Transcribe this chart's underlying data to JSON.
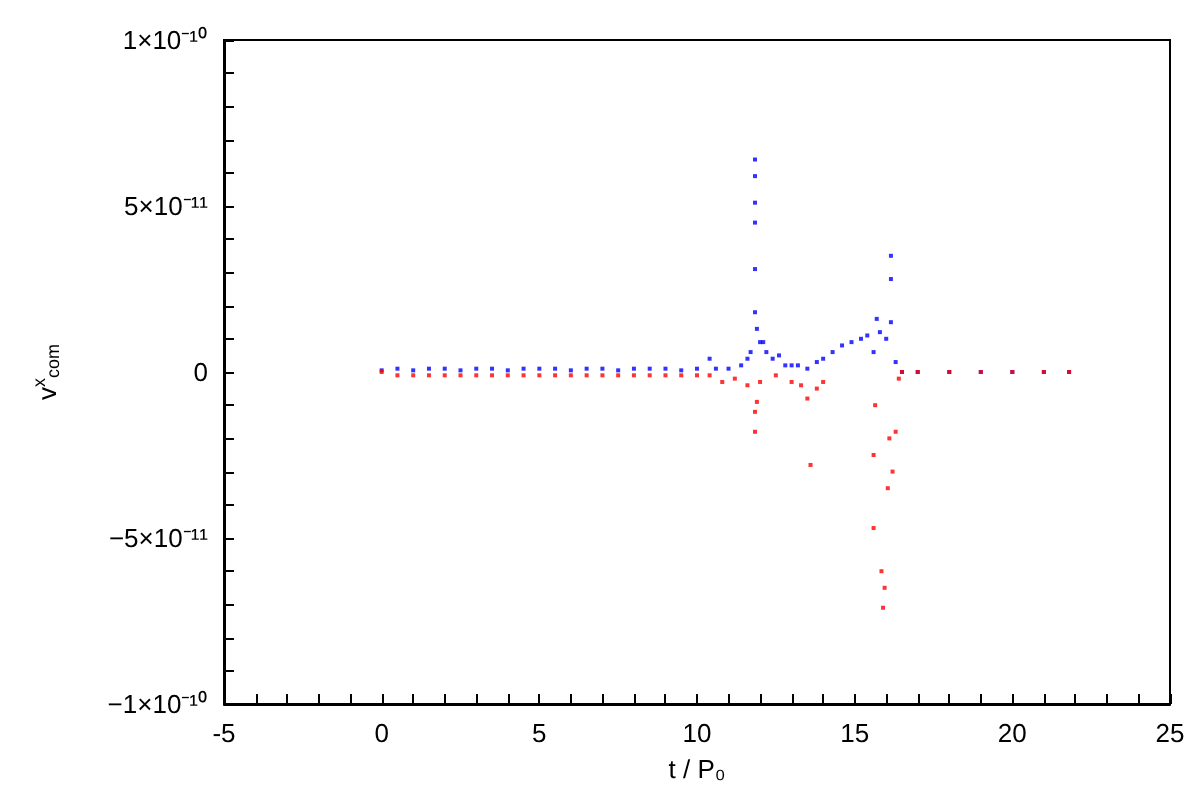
{
  "chart_data": {
    "type": "scatter",
    "xlabel": "t / P₀",
    "ylabel": "v$^{x}$$_{com}$",
    "marker": "square",
    "xlim": [
      -5,
      25
    ],
    "ylim": [
      -1e-10,
      1e-10
    ],
    "xticks": [
      -5,
      {
        "value": -4,
        "label": null
      },
      {
        "value": -3,
        "label": null
      },
      {
        "value": -2,
        "label": null
      },
      {
        "value": -1,
        "label": null
      },
      0,
      {
        "value": 1,
        "label": null
      },
      {
        "value": 2,
        "label": null
      },
      {
        "value": 3,
        "label": null
      },
      {
        "value": 4,
        "label": null
      },
      5,
      {
        "value": 6,
        "label": null
      },
      {
        "value": 7,
        "label": null
      },
      {
        "value": 8,
        "label": null
      },
      {
        "value": 9,
        "label": null
      },
      10,
      {
        "value": 11,
        "label": null
      },
      {
        "value": 12,
        "label": null
      },
      {
        "value": 13,
        "label": null
      },
      {
        "value": 14,
        "label": null
      },
      15,
      {
        "value": 16,
        "label": null
      },
      {
        "value": 17,
        "label": null
      },
      {
        "value": 18,
        "label": null
      },
      {
        "value": 19,
        "label": null
      },
      20,
      {
        "value": 21,
        "label": null
      },
      {
        "value": 22,
        "label": null
      },
      {
        "value": 23,
        "label": null
      },
      {
        "value": 24,
        "label": null
      },
      25
    ],
    "yticks": [
      {
        "value": -1e-10,
        "label": "−1×10⁻¹⁰"
      },
      {
        "value": -9e-11,
        "label": null
      },
      {
        "value": -8e-11,
        "label": null
      },
      {
        "value": -7e-11,
        "label": null
      },
      {
        "value": -6e-11,
        "label": null
      },
      {
        "value": -5e-11,
        "label": "−5×10⁻¹¹"
      },
      {
        "value": -4e-11,
        "label": null
      },
      {
        "value": -3e-11,
        "label": null
      },
      {
        "value": -2e-11,
        "label": null
      },
      {
        "value": -1e-11,
        "label": null
      },
      0,
      {
        "value": 1e-11,
        "label": null
      },
      {
        "value": 2e-11,
        "label": null
      },
      {
        "value": 3e-11,
        "label": null
      },
      {
        "value": 4e-11,
        "label": null
      },
      {
        "value": 5e-11,
        "label": "5×10⁻¹¹"
      },
      {
        "value": 6e-11,
        "label": null
      },
      {
        "value": 7e-11,
        "label": null
      },
      {
        "value": 8e-11,
        "label": null
      },
      {
        "value": 9e-11,
        "label": null
      },
      {
        "value": 1e-10,
        "label": "1×10⁻¹⁰"
      }
    ],
    "series": [
      {
        "color": "#0000ff",
        "x": [
          0,
          0.5,
          1,
          1.5,
          2,
          2.5,
          3,
          3.5,
          4,
          4.5,
          5,
          5.5,
          6,
          6.5,
          7,
          7.5,
          8,
          8.5,
          9,
          9.5,
          10,
          10.4,
          10.6,
          11,
          11.4,
          11.6,
          11.84,
          11.84,
          11.84,
          11.84,
          11.84,
          11.84,
          11.7,
          11.9,
          12,
          12.1,
          12.2,
          12.4,
          12.6,
          12.8,
          13,
          13.2,
          13.5,
          13.8,
          14,
          14.3,
          14.6,
          14.9,
          15.2,
          15.4,
          15.6,
          15.7,
          15.8,
          16,
          16.15,
          16.15,
          16.15,
          16.3,
          16.5,
          17,
          18,
          19,
          20,
          21,
          21.8
        ],
        "values": [
          5e-13,
          1e-12,
          5e-13,
          1e-12,
          1e-12,
          5e-13,
          1e-12,
          1e-12,
          5e-13,
          1e-12,
          1e-12,
          1e-12,
          5e-13,
          1e-12,
          1e-12,
          5e-13,
          1e-12,
          1e-12,
          1e-12,
          5e-13,
          1e-12,
          4e-12,
          1e-12,
          1e-12,
          2e-12,
          4e-12,
          6.4e-11,
          5.9e-11,
          5.1e-11,
          4.5e-11,
          3.1e-11,
          1.8e-11,
          6e-12,
          1.3e-11,
          9e-12,
          9e-12,
          6e-12,
          4e-12,
          5e-12,
          2e-12,
          2e-12,
          2e-12,
          1e-12,
          3e-12,
          4e-12,
          6e-12,
          8e-12,
          9e-12,
          1e-11,
          1.1e-11,
          6e-12,
          1.6e-11,
          1.2e-11,
          1e-11,
          3.5e-11,
          2.8e-11,
          1.5e-11,
          3e-12,
          0,
          0,
          0,
          0,
          0,
          0,
          0
        ]
      },
      {
        "color": "#ff0000",
        "x": [
          0,
          0.5,
          1,
          1.5,
          2,
          2.5,
          3,
          3.5,
          4,
          4.5,
          5,
          5.5,
          6,
          6.5,
          7,
          7.5,
          8,
          8.5,
          9,
          9.5,
          10,
          10.4,
          10.8,
          11.2,
          11.6,
          11.84,
          11.84,
          11.9,
          12,
          12.5,
          13,
          13.3,
          13.5,
          13.6,
          13.8,
          14,
          15.6,
          15.6,
          15.65,
          15.85,
          15.9,
          15.95,
          16.05,
          16.1,
          16.2,
          16.3,
          16.4,
          16.5,
          17,
          18,
          19,
          20,
          21,
          21.8
        ],
        "values": [
          0,
          -1e-12,
          -1e-12,
          -1e-12,
          -1e-12,
          -1e-12,
          -1e-12,
          -1e-12,
          -1e-12,
          -1e-12,
          -1e-12,
          -1e-12,
          -1e-12,
          -1e-12,
          -1e-12,
          -1e-12,
          -1e-12,
          -1e-12,
          -1e-12,
          -1e-12,
          -1e-12,
          -1e-12,
          -3e-12,
          -2e-12,
          -4e-12,
          -1.8e-11,
          -1.2e-11,
          -9e-12,
          -3e-12,
          -1e-12,
          -3e-12,
          -4e-12,
          -8e-12,
          -2.8e-11,
          -5e-12,
          -3e-12,
          -4.7e-11,
          -2.5e-11,
          -1e-11,
          -6e-11,
          -7.1e-11,
          -6.5e-11,
          -3.5e-11,
          -2e-11,
          -3e-11,
          -1.8e-11,
          -2e-12,
          0,
          0,
          0,
          0,
          0,
          0,
          0
        ]
      }
    ]
  }
}
